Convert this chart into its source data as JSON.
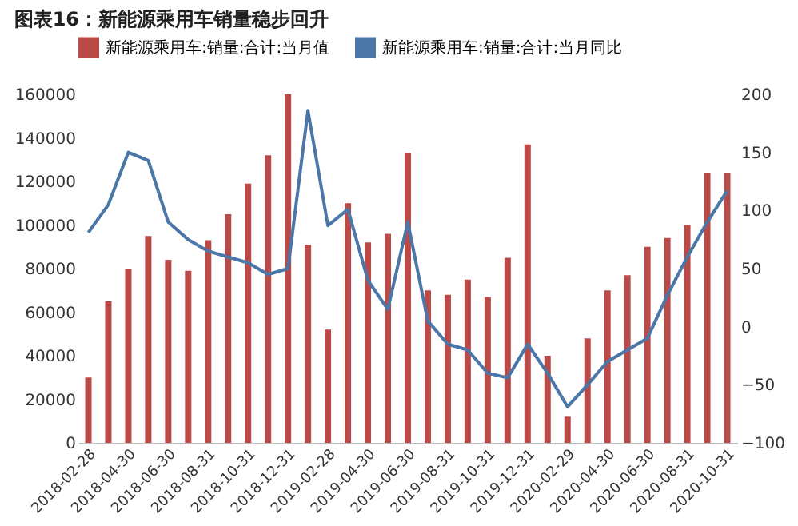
{
  "chart_data": {
    "type": "bar",
    "title": "图表16：新能源乘用车销量稳步回升",
    "categories": [
      "2018-02-28",
      null,
      "2018-04-30",
      null,
      "2018-06-30",
      null,
      "2018-08-31",
      null,
      "2018-10-31",
      null,
      "2018-12-31",
      null,
      "2019-02-28",
      null,
      "2019-04-30",
      null,
      "2019-06-30",
      null,
      "2019-08-31",
      null,
      "2019-10-31",
      null,
      "2019-12-31",
      null,
      "2020-02-29",
      null,
      "2020-04-30",
      null,
      "2020-06-30",
      null,
      "2020-08-31",
      null,
      "2020-10-31"
    ],
    "series": [
      {
        "name": "新能源乘用车:销量:合计:当月值",
        "color": "#b94a48",
        "values": [
          30000,
          65000,
          80000,
          95000,
          84000,
          79000,
          93000,
          105000,
          119000,
          132000,
          160000,
          91000,
          52000,
          110000,
          92000,
          96000,
          133000,
          70000,
          68000,
          75000,
          67000,
          85000,
          137000,
          40000,
          12000,
          48000,
          70000,
          77000,
          90000,
          94000,
          100000,
          124000,
          124000
        ]
      },
      {
        "name": "新能源乘用车:销量:合计:当月同比",
        "type": "line",
        "axis": "y2",
        "color": "#4a76a8",
        "values": [
          81,
          105,
          150,
          143,
          90,
          75,
          65,
          60,
          55,
          45,
          50,
          186,
          87,
          101,
          40,
          15,
          90,
          5,
          -15,
          -20,
          -40,
          -44,
          -15,
          -40,
          -69,
          -50,
          -30,
          -20,
          -10,
          27,
          60,
          90,
          117
        ]
      }
    ],
    "ylim": [
      0,
      160000
    ],
    "yticks": [
      0,
      20000,
      40000,
      60000,
      80000,
      100000,
      120000,
      140000,
      160000
    ],
    "y2lim": [
      -100,
      200
    ],
    "y2ticks": [
      -100,
      -50,
      0,
      50,
      100,
      150,
      200
    ],
    "legend": "top"
  }
}
